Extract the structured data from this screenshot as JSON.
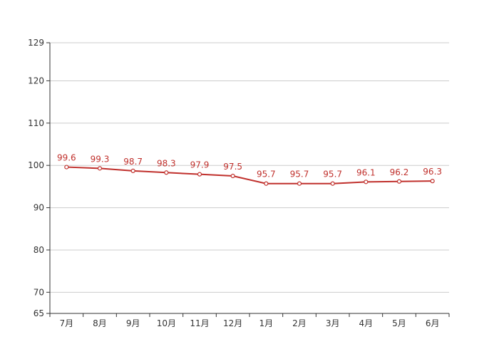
{
  "chart_data": {
    "type": "line",
    "categories": [
      "7月",
      "8月",
      "9月",
      "10月",
      "11月",
      "12月",
      "1月",
      "2月",
      "3月",
      "4月",
      "5月",
      "6月"
    ],
    "series": [
      {
        "values": [
          99.6,
          99.3,
          98.7,
          98.3,
          97.9,
          97.5,
          95.7,
          95.7,
          95.7,
          96.1,
          96.2,
          96.3
        ]
      }
    ],
    "data_labels": [
      "99.6",
      "99.3",
      "98.7",
      "98.3",
      "97.9",
      "97.5",
      "95.7",
      "95.7",
      "95.7",
      "96.1",
      "96.2",
      "96.3"
    ],
    "yticks": [
      65,
      70,
      80,
      90,
      100,
      110,
      120,
      129
    ],
    "ytick_labels": [
      "65",
      "70",
      "80",
      "90",
      "100",
      "110",
      "120",
      "129"
    ],
    "ylim": [
      65,
      129
    ],
    "grid": true,
    "colors": {
      "line": "#c0302c",
      "label": "#c0302c",
      "marker_fill": "#ffffff",
      "grid": "#cccccc",
      "axis": "#333333"
    }
  }
}
